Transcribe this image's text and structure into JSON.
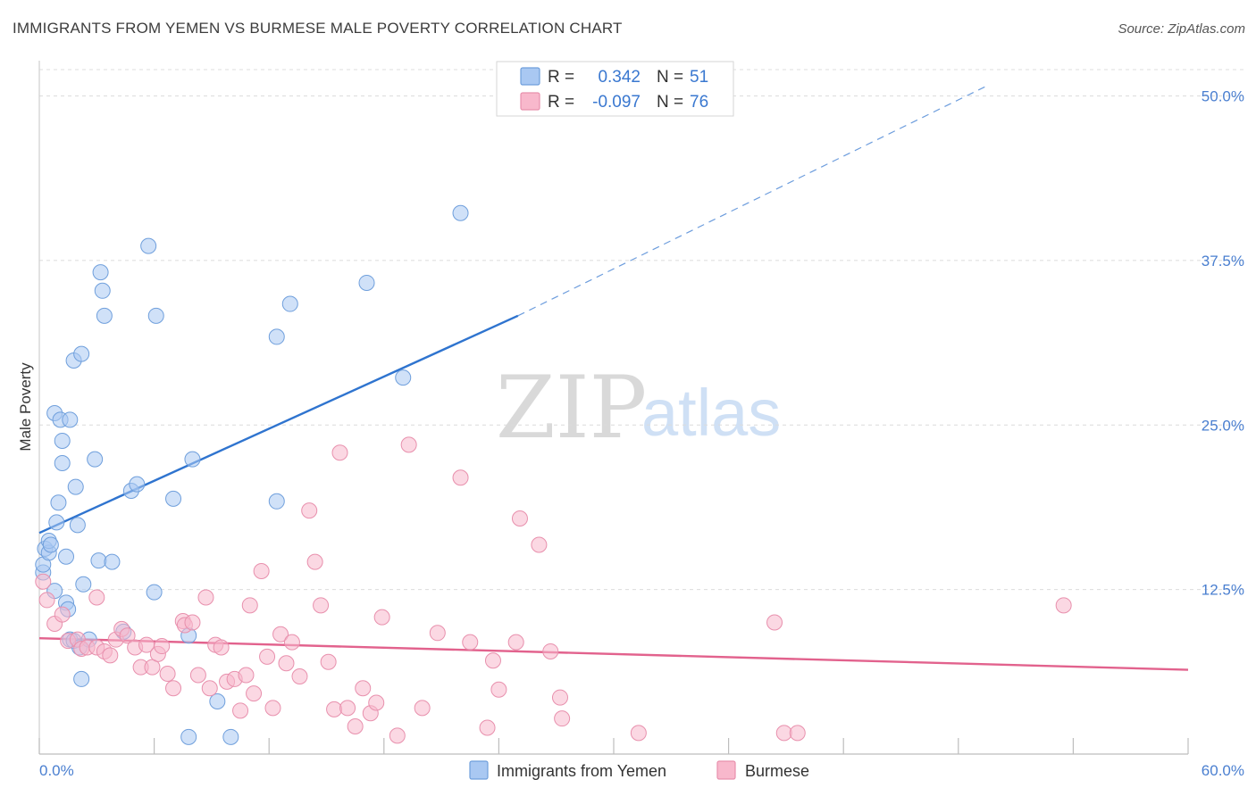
{
  "header": {
    "title": "IMMIGRANTS FROM YEMEN VS BURMESE MALE POVERTY CORRELATION CHART",
    "source": "Source: ZipAtlas.com"
  },
  "watermark": {
    "part1": "ZIP",
    "part2": "atlas"
  },
  "legend": {
    "r_label": "R =",
    "n_label": "N =",
    "rows": [
      {
        "r": "0.342",
        "n": "51"
      },
      {
        "r": "-0.097",
        "n": "76"
      }
    ]
  },
  "chart_data": {
    "type": "scatter",
    "title": "IMMIGRANTS FROM YEMEN VS BURMESE MALE POVERTY CORRELATION CHART",
    "xlabel": "",
    "ylabel": "Male Poverty",
    "xlim": [
      0,
      60
    ],
    "ylim": [
      0,
      52
    ],
    "x_tick_labels": [
      "0.0%",
      "60.0%"
    ],
    "y_ticks": [
      12.5,
      25.0,
      37.5,
      50.0
    ],
    "y_tick_labels": [
      "12.5%",
      "25.0%",
      "37.5%",
      "50.0%"
    ],
    "grid": true,
    "legend_position": "bottom",
    "series": [
      {
        "name": "Immigrants from Yemen",
        "color": "#a9c8f2",
        "edge": "#6f9fdc",
        "r": 0.342,
        "n": 51,
        "trend": {
          "x1": 0,
          "y1": 16.8,
          "x2": 25,
          "y2": 33.3,
          "dash_to_x": 49.4,
          "dash_to_y": 50.7,
          "color": "#2f74cf"
        },
        "points": [
          [
            0.2,
            13.8
          ],
          [
            0.2,
            14.4
          ],
          [
            0.3,
            15.6
          ],
          [
            0.5,
            15.3
          ],
          [
            0.5,
            16.2
          ],
          [
            0.6,
            15.9
          ],
          [
            0.8,
            12.4
          ],
          [
            0.8,
            25.9
          ],
          [
            0.9,
            17.6
          ],
          [
            1.0,
            19.1
          ],
          [
            1.1,
            25.4
          ],
          [
            1.2,
            22.1
          ],
          [
            1.2,
            23.8
          ],
          [
            1.4,
            15.0
          ],
          [
            1.4,
            11.5
          ],
          [
            1.5,
            11.0
          ],
          [
            1.6,
            8.7
          ],
          [
            1.6,
            25.4
          ],
          [
            1.8,
            8.6
          ],
          [
            1.8,
            29.9
          ],
          [
            1.9,
            20.3
          ],
          [
            2.0,
            17.4
          ],
          [
            2.1,
            8.1
          ],
          [
            2.2,
            5.7
          ],
          [
            2.2,
            30.4
          ],
          [
            2.3,
            12.9
          ],
          [
            2.6,
            8.7
          ],
          [
            2.9,
            22.4
          ],
          [
            3.1,
            14.7
          ],
          [
            3.2,
            36.6
          ],
          [
            3.3,
            35.2
          ],
          [
            3.4,
            33.3
          ],
          [
            3.8,
            14.6
          ],
          [
            4.4,
            9.3
          ],
          [
            4.8,
            20.0
          ],
          [
            5.1,
            20.5
          ],
          [
            5.7,
            38.6
          ],
          [
            6.0,
            12.3
          ],
          [
            6.1,
            33.3
          ],
          [
            7.0,
            19.4
          ],
          [
            7.8,
            1.3
          ],
          [
            7.8,
            9.0
          ],
          [
            8.0,
            22.4
          ],
          [
            9.3,
            4.0
          ],
          [
            10.0,
            1.3
          ],
          [
            12.4,
            31.7
          ],
          [
            12.4,
            19.2
          ],
          [
            13.1,
            34.2
          ],
          [
            17.1,
            35.8
          ],
          [
            19.0,
            28.6
          ],
          [
            22.0,
            41.1
          ]
        ]
      },
      {
        "name": "Burmese",
        "color": "#f8b8cc",
        "edge": "#e890ad",
        "r": -0.097,
        "n": 76,
        "trend": {
          "x1": 0,
          "y1": 8.8,
          "x2": 60,
          "y2": 6.4,
          "color": "#e2628d"
        },
        "points": [
          [
            0.2,
            13.1
          ],
          [
            0.4,
            11.7
          ],
          [
            0.8,
            9.9
          ],
          [
            1.2,
            10.6
          ],
          [
            1.5,
            8.6
          ],
          [
            2.0,
            8.7
          ],
          [
            2.2,
            8.0
          ],
          [
            2.5,
            8.1
          ],
          [
            3.0,
            8.1
          ],
          [
            3.0,
            11.9
          ],
          [
            3.4,
            7.8
          ],
          [
            3.7,
            7.5
          ],
          [
            4.0,
            8.7
          ],
          [
            4.3,
            9.5
          ],
          [
            4.6,
            9.0
          ],
          [
            5.0,
            8.1
          ],
          [
            5.3,
            6.6
          ],
          [
            5.6,
            8.3
          ],
          [
            5.9,
            6.6
          ],
          [
            6.2,
            7.6
          ],
          [
            6.4,
            8.2
          ],
          [
            6.7,
            6.1
          ],
          [
            7.0,
            5.0
          ],
          [
            7.5,
            10.1
          ],
          [
            7.6,
            9.8
          ],
          [
            8.0,
            10.0
          ],
          [
            8.3,
            6.0
          ],
          [
            8.7,
            11.9
          ],
          [
            8.9,
            5.0
          ],
          [
            9.2,
            8.3
          ],
          [
            9.5,
            8.1
          ],
          [
            9.8,
            5.5
          ],
          [
            10.2,
            5.7
          ],
          [
            10.5,
            3.3
          ],
          [
            10.8,
            6.0
          ],
          [
            11.0,
            11.3
          ],
          [
            11.2,
            4.6
          ],
          [
            11.6,
            13.9
          ],
          [
            11.9,
            7.4
          ],
          [
            12.2,
            3.5
          ],
          [
            12.6,
            9.1
          ],
          [
            12.9,
            6.9
          ],
          [
            13.2,
            8.5
          ],
          [
            13.6,
            5.9
          ],
          [
            14.1,
            18.5
          ],
          [
            14.4,
            14.6
          ],
          [
            14.7,
            11.3
          ],
          [
            15.1,
            7.0
          ],
          [
            15.4,
            3.4
          ],
          [
            15.7,
            22.9
          ],
          [
            16.1,
            3.5
          ],
          [
            16.5,
            2.1
          ],
          [
            16.9,
            5.0
          ],
          [
            17.3,
            3.1
          ],
          [
            17.6,
            3.9
          ],
          [
            17.9,
            10.4
          ],
          [
            18.7,
            1.4
          ],
          [
            19.3,
            23.5
          ],
          [
            20.0,
            3.5
          ],
          [
            20.8,
            9.2
          ],
          [
            22.0,
            21.0
          ],
          [
            22.5,
            8.5
          ],
          [
            23.4,
            2.0
          ],
          [
            23.7,
            7.1
          ],
          [
            24.0,
            4.9
          ],
          [
            24.9,
            8.5
          ],
          [
            25.1,
            17.9
          ],
          [
            26.1,
            15.9
          ],
          [
            26.7,
            7.8
          ],
          [
            27.2,
            4.3
          ],
          [
            27.3,
            2.7
          ],
          [
            31.3,
            1.6
          ],
          [
            38.4,
            10.0
          ],
          [
            38.9,
            1.6
          ],
          [
            39.6,
            1.6
          ],
          [
            53.5,
            11.3
          ]
        ]
      }
    ]
  }
}
